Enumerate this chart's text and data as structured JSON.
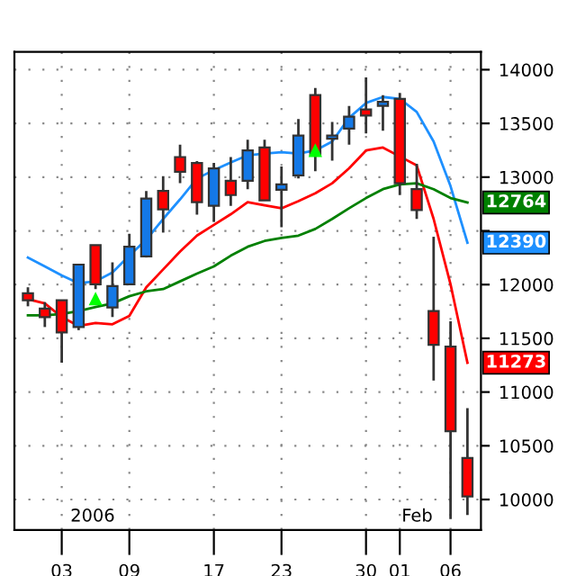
{
  "chart_data": {
    "type": "candlestick",
    "categories": [
      null,
      null,
      "03",
      null,
      null,
      null,
      "09",
      null,
      null,
      null,
      null,
      "17",
      null,
      null,
      null,
      "23",
      null,
      null,
      null,
      null,
      "30",
      null,
      "01",
      null,
      null,
      "06",
      null
    ],
    "ohlc": [
      [
        11920,
        11975,
        11798,
        11854
      ],
      [
        11776,
        11837,
        11605,
        11698
      ],
      [
        11854,
        11854,
        11273,
        11555
      ],
      [
        11605,
        12186,
        11576,
        12186
      ],
      [
        12368,
        12368,
        11958,
        12003
      ],
      [
        11787,
        12207,
        11698,
        11986
      ],
      [
        12003,
        12473,
        12003,
        12352
      ],
      [
        12262,
        12871,
        12252,
        12800
      ],
      [
        12871,
        13009,
        12484,
        12700
      ],
      [
        13187,
        13303,
        12943,
        13049
      ],
      [
        13132,
        13150,
        12650,
        12767
      ],
      [
        12733,
        13132,
        12584,
        13082
      ],
      [
        12966,
        13187,
        12733,
        12833
      ],
      [
        12966,
        13348,
        12888,
        13248
      ],
      [
        13275,
        13348,
        12783,
        12783
      ],
      [
        12883,
        13099,
        12534,
        12933
      ],
      [
        13016,
        13540,
        12987,
        13386
      ],
      [
        13763,
        13829,
        13054,
        13208
      ],
      [
        13358,
        13514,
        13153,
        13386
      ],
      [
        13452,
        13663,
        13303,
        13563
      ],
      [
        13630,
        13929,
        13407,
        13573
      ],
      [
        13663,
        13763,
        13431,
        13701
      ],
      [
        13729,
        13784,
        12833,
        12943
      ],
      [
        12888,
        13125,
        12611,
        12694
      ],
      [
        11754,
        12445,
        11107,
        11439
      ],
      [
        11422,
        11659,
        9817,
        10635
      ],
      [
        10386,
        10851,
        9855,
        10028
      ]
    ],
    "colors": [
      "#ff0000",
      "#ff0000",
      "#ff0000",
      "#1478e6",
      "#ff0000",
      "#1478e6",
      "#1478e6",
      "#1478e6",
      "#ff0000",
      "#ff0000",
      "#ff0000",
      "#1478e6",
      "#ff0000",
      "#1478e6",
      "#ff0000",
      "#1478e6",
      "#1478e6",
      "#ff0000",
      "#1478e6",
      "#1478e6",
      "#ff0000",
      "#1478e6",
      "#ff0000",
      "#ff0000",
      "#ff0000",
      "#ff0000",
      "#ff0000"
    ],
    "series": [
      {
        "type": "line",
        "color": "#1e90ff",
        "values": [
          12252,
          12169,
          12086,
          12013,
          12030,
          12113,
          12269,
          12418,
          12611,
          12793,
          12987,
          13065,
          13137,
          13203,
          13220,
          13231,
          13220,
          13248,
          13331,
          13552,
          13690,
          13746,
          13729,
          13607,
          13331,
          12916,
          12390
        ],
        "value_labels": [
          null,
          null,
          null,
          null,
          null,
          null,
          null,
          null,
          null,
          null,
          null,
          null,
          null,
          null,
          null,
          null,
          null,
          null,
          null,
          null,
          null,
          null,
          null,
          null,
          null,
          null,
          "12390"
        ]
      },
      {
        "type": "line",
        "color": "#ff0000",
        "values": [
          11864,
          11825,
          11698,
          11615,
          11643,
          11631,
          11709,
          11975,
          12141,
          12307,
          12456,
          12556,
          12655,
          12767,
          12738,
          12710,
          12777,
          12850,
          12943,
          13082,
          13248,
          13275,
          13192,
          13109,
          12611,
          12003,
          11273
        ],
        "value_labels": [
          null,
          null,
          null,
          null,
          null,
          null,
          null,
          null,
          null,
          null,
          null,
          null,
          null,
          null,
          null,
          null,
          null,
          null,
          null,
          null,
          null,
          null,
          null,
          null,
          null,
          null,
          "11273"
        ]
      },
      {
        "type": "line",
        "color": "#008000",
        "values": [
          11714,
          11714,
          11726,
          11754,
          11792,
          11825,
          11892,
          11937,
          11958,
          12030,
          12103,
          12169,
          12269,
          12352,
          12406,
          12434,
          12456,
          12518,
          12611,
          12710,
          12805,
          12888,
          12933,
          12943,
          12888,
          12805,
          12764
        ],
        "value_labels": [
          null,
          null,
          null,
          null,
          null,
          null,
          null,
          null,
          null,
          null,
          null,
          null,
          null,
          null,
          null,
          null,
          null,
          null,
          null,
          null,
          null,
          null,
          null,
          null,
          null,
          null,
          "12764"
        ]
      },
      {
        "type": "scatter",
        "color": "#00ff00",
        "marker": "triangle",
        "values": [
          null,
          null,
          null,
          null,
          11870,
          null,
          null,
          null,
          null,
          null,
          null,
          null,
          null,
          null,
          null,
          null,
          null,
          13250,
          null,
          null,
          null,
          null,
          null,
          null,
          null,
          null,
          null
        ]
      }
    ],
    "ylim": [
      9717,
      14166
    ],
    "yticks": [
      10000,
      10500,
      11000,
      11500,
      12000,
      {
        "value": 12500,
        "label": null
      },
      13000,
      13500,
      14000
    ],
    "grid": true,
    "annotations": [
      "2006",
      "Feb"
    ]
  }
}
